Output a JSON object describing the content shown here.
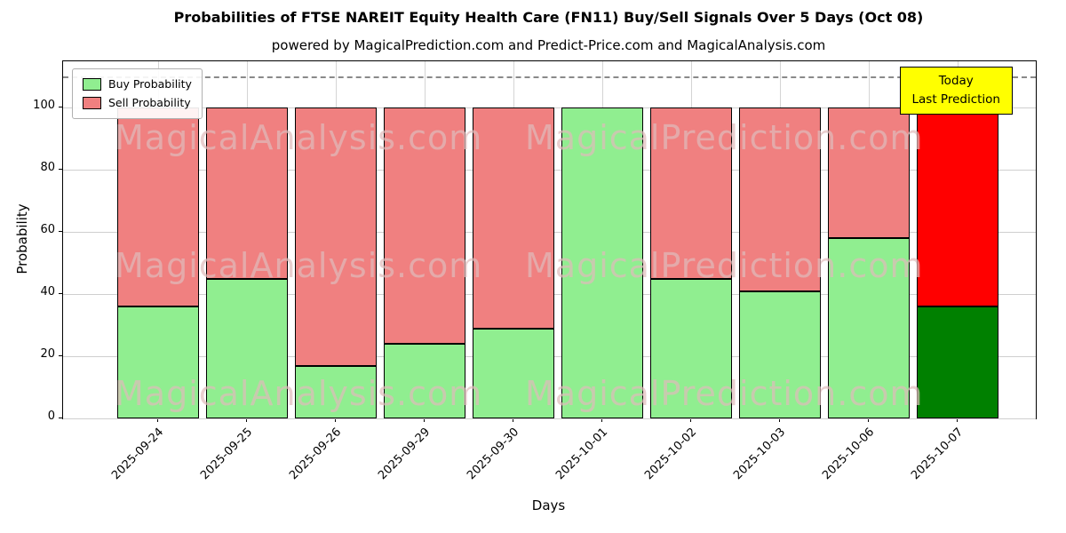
{
  "chart_data": {
    "type": "bar",
    "stacked": true,
    "title": "Probabilities of FTSE NAREIT Equity Health Care (FN11) Buy/Sell Signals Over 5 Days (Oct 08)",
    "subtitle": "powered by MagicalPrediction.com and Predict-Price.com and MagicalAnalysis.com",
    "xlabel": "Days",
    "ylabel": "Probability",
    "categories": [
      "2025-09-24",
      "2025-09-25",
      "2025-09-26",
      "2025-09-29",
      "2025-09-30",
      "2025-10-01",
      "2025-10-02",
      "2025-10-03",
      "2025-10-06",
      "2025-10-07"
    ],
    "series": [
      {
        "name": "Buy Probability",
        "color": "#90ee90",
        "values": [
          36,
          45,
          17,
          24,
          29,
          100,
          45,
          41,
          58,
          36
        ]
      },
      {
        "name": "Sell Probability",
        "color": "#f08080",
        "values": [
          64,
          55,
          83,
          76,
          71,
          0,
          55,
          59,
          42,
          64
        ]
      }
    ],
    "last_bar_colors": {
      "buy": "#008000",
      "sell": "#ff0000"
    },
    "ylim": [
      0,
      115
    ],
    "yticks": [
      0,
      20,
      40,
      60,
      80,
      100
    ],
    "dashed_line_y": 110,
    "grid": true,
    "legend_position": "upper-left",
    "annotation": {
      "lines": [
        "Today",
        "Last Prediction"
      ],
      "bg": "#ffff00"
    },
    "watermarks": [
      "MagicalAnalysis.com",
      "MagicalPrediction.com"
    ]
  }
}
